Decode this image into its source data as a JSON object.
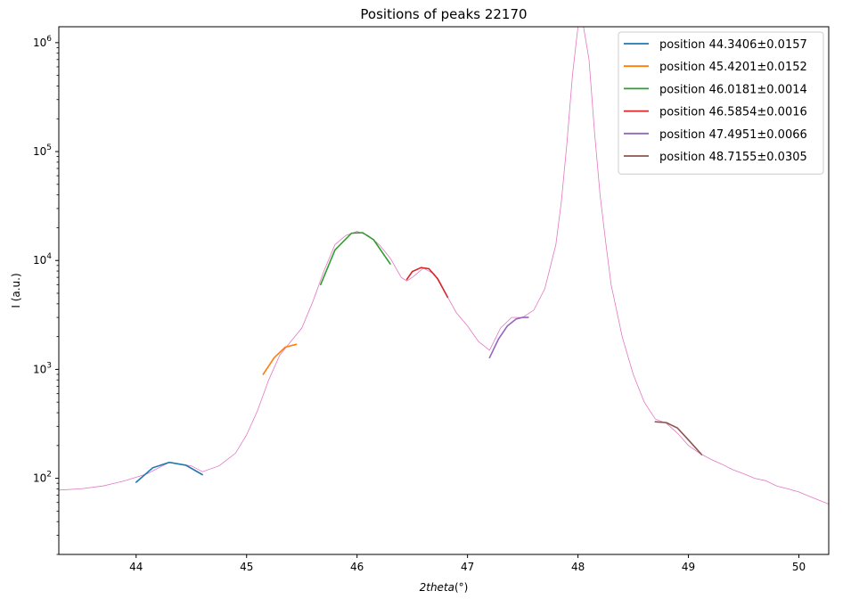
{
  "chart_data": {
    "type": "line",
    "title": "Positions of peaks 22170",
    "xlabel": "2theta(°)",
    "ylabel": "I (a.u.)",
    "xscale": "linear",
    "yscale": "log",
    "xlim": [
      43.3,
      50.27
    ],
    "ylim": [
      20,
      1400000
    ],
    "xticks": [
      44,
      45,
      46,
      47,
      48,
      49,
      50
    ],
    "yticks": [
      {
        "value": 100,
        "label": "10",
        "exp": "2"
      },
      {
        "value": 1000,
        "label": "10",
        "exp": "3"
      },
      {
        "value": 10000,
        "label": "10",
        "exp": "4"
      },
      {
        "value": 100000,
        "label": "10",
        "exp": "5"
      },
      {
        "value": 1000000,
        "label": "10",
        "exp": "6"
      }
    ],
    "legend_position": "top-right",
    "grid": false,
    "measured": {
      "color": "#e377c2",
      "x": [
        43.3,
        43.5,
        43.7,
        43.9,
        44.1,
        44.3,
        44.5,
        44.6,
        44.75,
        44.9,
        45.0,
        45.1,
        45.2,
        45.3,
        45.4,
        45.5,
        45.6,
        45.7,
        45.8,
        45.9,
        46.0,
        46.1,
        46.2,
        46.3,
        46.4,
        46.45,
        46.5,
        46.6,
        46.7,
        46.8,
        46.9,
        47.0,
        47.1,
        47.2,
        47.3,
        47.4,
        47.5,
        47.6,
        47.7,
        47.8,
        47.85,
        47.9,
        47.95,
        48.0,
        48.05,
        48.1,
        48.15,
        48.2,
        48.25,
        48.3,
        48.4,
        48.5,
        48.6,
        48.7,
        48.8,
        48.9,
        49.0,
        49.1,
        49.2,
        49.3,
        49.4,
        49.5,
        49.6,
        49.7,
        49.8,
        49.9,
        50.0,
        50.1,
        50.2,
        50.27
      ],
      "y": [
        78,
        80,
        85,
        95,
        110,
        140,
        130,
        115,
        130,
        170,
        250,
        420,
        800,
        1350,
        1800,
        2400,
        4200,
        8000,
        14000,
        17000,
        18500,
        17000,
        14000,
        10500,
        7000,
        6500,
        7000,
        8500,
        7500,
        5000,
        3300,
        2500,
        1800,
        1500,
        2400,
        3000,
        3000,
        3500,
        5500,
        14000,
        35000,
        120000,
        500000,
        1400000,
        1400000,
        700000,
        150000,
        40000,
        15000,
        6000,
        2000,
        900,
        500,
        350,
        320,
        260,
        200,
        170,
        150,
        135,
        120,
        110,
        100,
        95,
        85,
        80,
        75,
        68,
        62,
        58
      ]
    },
    "series": [
      {
        "name": "position 44.3406±0.0157",
        "color": "#1f77b4",
        "x": [
          44.0,
          44.15,
          44.3,
          44.45,
          44.6
        ],
        "y": [
          92,
          125,
          140,
          132,
          108
        ]
      },
      {
        "name": "position 45.4201±0.0152",
        "color": "#ff7f0e",
        "x": [
          45.15,
          45.25,
          45.35,
          45.45
        ],
        "y": [
          900,
          1280,
          1600,
          1700
        ]
      },
      {
        "name": "position 46.0181±0.0014",
        "color": "#2ca02c",
        "x": [
          45.67,
          45.8,
          45.95,
          46.05,
          46.15,
          46.3
        ],
        "y": [
          6000,
          12500,
          17800,
          18000,
          15500,
          9300
        ]
      },
      {
        "name": "position 46.5854±0.0016",
        "color": "#d62728",
        "x": [
          46.45,
          46.5,
          46.58,
          46.65,
          46.73,
          46.82
        ],
        "y": [
          6700,
          7900,
          8600,
          8400,
          6800,
          4600
        ]
      },
      {
        "name": "position 47.4951±0.0066",
        "color": "#9467bd",
        "x": [
          47.2,
          47.28,
          47.36,
          47.44,
          47.5,
          47.55
        ],
        "y": [
          1280,
          1900,
          2500,
          2900,
          3000,
          3000
        ]
      },
      {
        "name": "position 48.7155±0.0305",
        "color": "#8c564b",
        "x": [
          48.7,
          48.8,
          48.9,
          49.0,
          49.12
        ],
        "y": [
          330,
          325,
          290,
          225,
          165
        ]
      }
    ]
  }
}
